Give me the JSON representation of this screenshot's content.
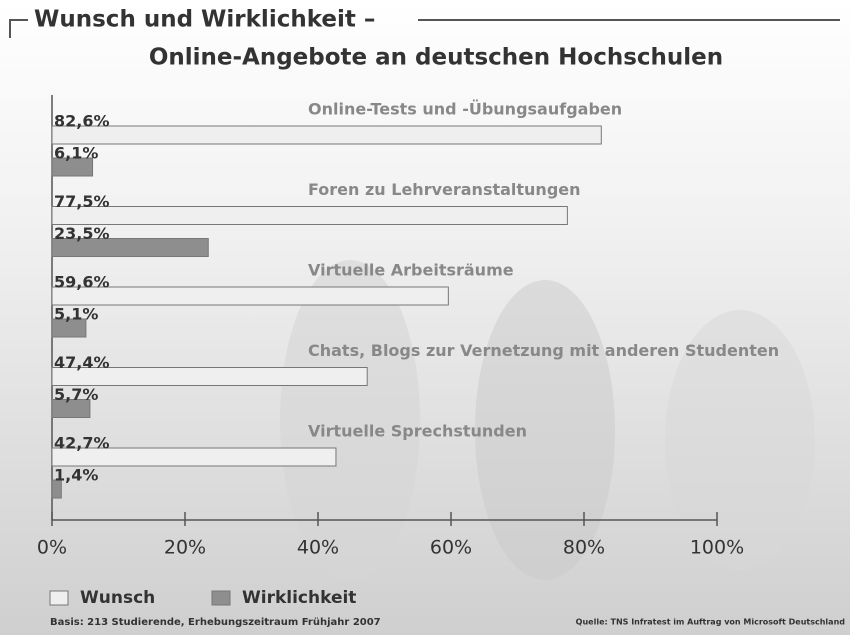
{
  "chart_data": {
    "type": "bar",
    "orientation": "horizontal",
    "title": "Wunsch und Wirklichkeit –",
    "subtitle": "Online-Angebote an deutschen Hochschulen",
    "categories": [
      "Online-Tests und -Übungsaufgaben",
      "Foren zu Lehrveranstaltungen",
      "Virtuelle Arbeitsräume",
      "Chats, Blogs zur Vernetzung mit anderen Studenten",
      "Virtuelle Sprechstunden"
    ],
    "series": [
      {
        "name": "Wunsch",
        "color": "#efefef",
        "values": [
          82.6,
          77.5,
          59.6,
          47.4,
          42.7
        ],
        "value_labels": [
          "82,6%",
          "77,5%",
          "59,6%",
          "47,4%",
          "42,7%"
        ]
      },
      {
        "name": "Wirklichkeit",
        "color": "#8e8e8e",
        "values": [
          6.1,
          23.5,
          5.1,
          5.7,
          1.4
        ],
        "value_labels": [
          "6,1%",
          "23,5%",
          "5,1%",
          "5,7%",
          "1,4%"
        ]
      }
    ],
    "xlim": [
      0,
      100
    ],
    "xticks": [
      {
        "value": 0,
        "label": "0%"
      },
      {
        "value": 20,
        "label": "20%"
      },
      {
        "value": 40,
        "label": "40%"
      },
      {
        "value": 60,
        "label": "60%"
      },
      {
        "value": 80,
        "label": "80%"
      },
      {
        "value": 100,
        "label": "100%"
      }
    ],
    "footnote": "Basis: 213 Studierende, Erhebungszeitraum Frühjahr 2007",
    "source": "Quelle: TNS Infratest im Auftrag von Microsoft Deutschland"
  }
}
